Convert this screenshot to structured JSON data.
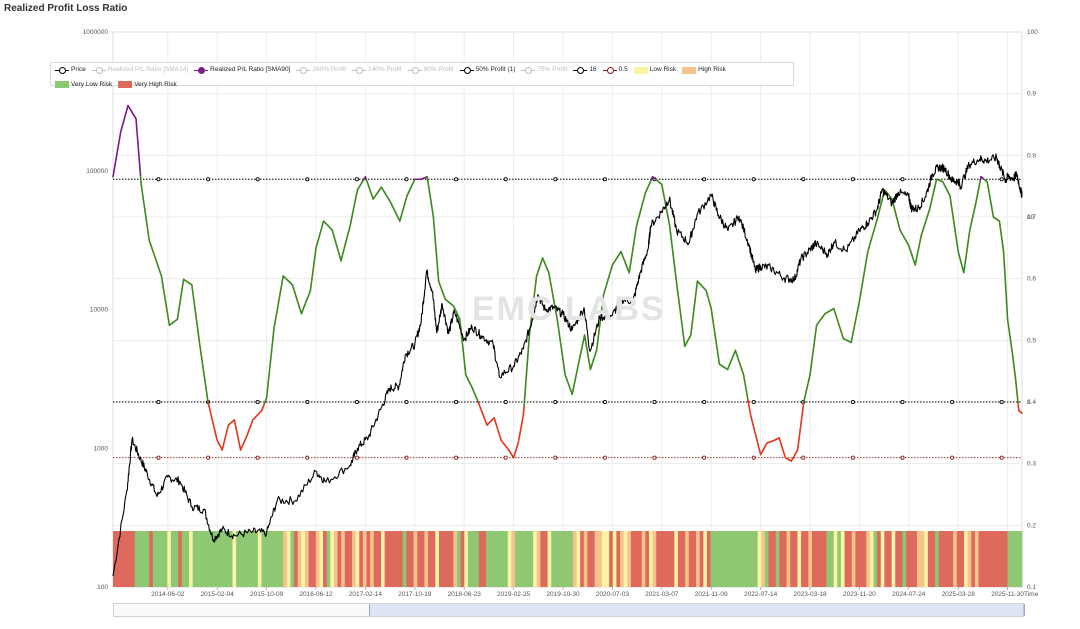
{
  "title": "Realized Profit Loss Ratio",
  "watermark": "EMC LABS",
  "legend": [
    {
      "label": "Price",
      "kind": "line",
      "color": "#000000",
      "active": true,
      "marker": "open"
    },
    {
      "label": "Realized P/L Ratio [SMA14]",
      "kind": "line",
      "color": "#bdbdbd",
      "active": false,
      "marker": "open"
    },
    {
      "label": "Realized P/L Ratio [SMA90]",
      "kind": "line",
      "color": "#7b1f86",
      "active": true,
      "marker": "fill"
    },
    {
      "label": "260% Profit",
      "kind": "line",
      "color": "#bdbdbd",
      "active": false,
      "marker": "open"
    },
    {
      "label": "140% Profit",
      "kind": "line",
      "color": "#bdbdbd",
      "active": false,
      "marker": "open"
    },
    {
      "label": "90% Profit",
      "kind": "line",
      "color": "#bdbdbd",
      "active": false,
      "marker": "open"
    },
    {
      "label": "50% Profit (1)",
      "kind": "line",
      "color": "#000000",
      "active": true,
      "marker": "open"
    },
    {
      "label": "75% Profit",
      "kind": "line",
      "color": "#bdbdbd",
      "active": false,
      "marker": "open"
    },
    {
      "label": "16",
      "kind": "line",
      "color": "#000000",
      "active": true,
      "marker": "open"
    },
    {
      "label": "0.5",
      "kind": "line",
      "color": "#8b1a1a",
      "active": true,
      "marker": "open"
    },
    {
      "label": "Low Risk",
      "kind": "box",
      "color": "#fbf3a6",
      "active": true
    },
    {
      "label": "High Risk",
      "kind": "box",
      "color": "#f6c48a",
      "active": true
    },
    {
      "label": "Very Low Risk",
      "kind": "box",
      "color": "#8fc872",
      "active": true
    },
    {
      "label": "Very High Risk",
      "kind": "box",
      "color": "#de6a5e",
      "active": true
    }
  ],
  "axes": {
    "left_ticks": [
      "1000000",
      "100000",
      "10000",
      "1000",
      "100"
    ],
    "right_outer_ticks": [
      "100",
      "0.9",
      "0.8",
      "0.7",
      "0.6",
      "0.5",
      "0.4",
      "0.3",
      "0.2",
      "0.1"
    ],
    "right_inner_ticks": [
      "10",
      "1"
    ],
    "time_label": "Time"
  },
  "chart_data": {
    "type": "line",
    "x_tick_labels": [
      "2014-06-02",
      "2015-02-04",
      "2015-10-09",
      "2016-06-12",
      "2017-02-14",
      "2017-10-19",
      "2018-06-23",
      "2019-02-25",
      "2019-10-30",
      "2020-07-03",
      "2021-03-07",
      "2021-11-09",
      "2022-07-14",
      "2023-03-18",
      "2023-11-20",
      "2024-07-24",
      "2025-03-28",
      "2025-11-30"
    ],
    "x_range": [
      "2013-09-01",
      "2026-02-10"
    ],
    "left_axis": {
      "scale": "log",
      "range": [
        100,
        1000000
      ]
    },
    "right_axis": {
      "scale": "log",
      "range": [
        0.1,
        100
      ]
    },
    "reference_lines": [
      {
        "name": "50% Profit (1)",
        "axis": "right",
        "value": 1,
        "color": "#000000"
      },
      {
        "name": "16",
        "axis": "right",
        "value": 16,
        "color": "#000000"
      },
      {
        "name": "0.5",
        "axis": "right",
        "value": 0.5,
        "color": "#8b1a1a"
      }
    ],
    "series": [
      {
        "name": "Price",
        "axis": "left",
        "color": "#000000",
        "points": [
          [
            "2013-09-01",
            120
          ],
          [
            "2013-11-10",
            500
          ],
          [
            "2013-12-05",
            1150
          ],
          [
            "2014-01-15",
            850
          ],
          [
            "2014-02-20",
            650
          ],
          [
            "2014-04-10",
            450
          ],
          [
            "2014-06-02",
            620
          ],
          [
            "2014-08-01",
            580
          ],
          [
            "2014-10-01",
            380
          ],
          [
            "2014-12-01",
            360
          ],
          [
            "2015-01-15",
            220
          ],
          [
            "2015-03-01",
            260
          ],
          [
            "2015-05-01",
            235
          ],
          [
            "2015-08-01",
            250
          ],
          [
            "2015-10-09",
            245
          ],
          [
            "2015-12-01",
            420
          ],
          [
            "2016-03-01",
            420
          ],
          [
            "2016-06-12",
            680
          ],
          [
            "2016-08-01",
            570
          ],
          [
            "2016-12-01",
            760
          ],
          [
            "2017-01-05",
            1000
          ],
          [
            "2017-03-01",
            1200
          ],
          [
            "2017-05-01",
            1900
          ],
          [
            "2017-06-15",
            2700
          ],
          [
            "2017-08-01",
            2800
          ],
          [
            "2017-09-01",
            4700
          ],
          [
            "2017-10-19",
            5600
          ],
          [
            "2017-11-20",
            8200
          ],
          [
            "2017-12-17",
            19000
          ],
          [
            "2018-01-15",
            13500
          ],
          [
            "2018-02-06",
            6800
          ],
          [
            "2018-03-05",
            11000
          ],
          [
            "2018-04-06",
            6700
          ],
          [
            "2018-05-05",
            9700
          ],
          [
            "2018-06-23",
            6100
          ],
          [
            "2018-08-01",
            7500
          ],
          [
            "2018-09-15",
            6500
          ],
          [
            "2018-11-15",
            5600
          ],
          [
            "2018-12-15",
            3300
          ],
          [
            "2019-02-25",
            3900
          ],
          [
            "2019-04-15",
            5200
          ],
          [
            "2019-05-30",
            8500
          ],
          [
            "2019-06-26",
            12800
          ],
          [
            "2019-08-01",
            10000
          ],
          [
            "2019-09-15",
            10300
          ],
          [
            "2019-10-30",
            9200
          ],
          [
            "2019-12-15",
            7100
          ],
          [
            "2020-02-12",
            10300
          ],
          [
            "2020-03-13",
            5000
          ],
          [
            "2020-05-01",
            8800
          ],
          [
            "2020-07-03",
            9100
          ],
          [
            "2020-08-15",
            11800
          ],
          [
            "2020-10-15",
            11500
          ],
          [
            "2020-11-20",
            18500
          ],
          [
            "2020-12-30",
            28000
          ],
          [
            "2021-01-10",
            40000
          ],
          [
            "2021-03-07",
            51000
          ],
          [
            "2021-04-14",
            63000
          ],
          [
            "2021-05-20",
            37000
          ],
          [
            "2021-07-20",
            30000
          ],
          [
            "2021-08-30",
            48000
          ],
          [
            "2021-11-09",
            67000
          ],
          [
            "2021-12-15",
            48000
          ],
          [
            "2022-02-01",
            37000
          ],
          [
            "2022-03-28",
            47000
          ],
          [
            "2022-05-15",
            30000
          ],
          [
            "2022-06-18",
            19000
          ],
          [
            "2022-07-14",
            20500
          ],
          [
            "2022-09-01",
            20000
          ],
          [
            "2022-11-10",
            16800
          ],
          [
            "2022-12-31",
            16500
          ],
          [
            "2023-01-31",
            23000
          ],
          [
            "2023-03-18",
            27000
          ],
          [
            "2023-04-15",
            30000
          ],
          [
            "2023-06-15",
            25000
          ],
          [
            "2023-07-15",
            30500
          ],
          [
            "2023-09-15",
            26500
          ],
          [
            "2023-11-20",
            37000
          ],
          [
            "2023-12-31",
            42000
          ],
          [
            "2024-02-15",
            52000
          ],
          [
            "2024-03-14",
            73000
          ],
          [
            "2024-05-01",
            58000
          ],
          [
            "2024-06-01",
            70000
          ],
          [
            "2024-07-24",
            65000
          ],
          [
            "2024-08-05",
            54000
          ],
          [
            "2024-09-06",
            53000
          ],
          [
            "2024-10-15",
            65000
          ],
          [
            "2024-11-20",
            95000
          ],
          [
            "2024-12-17",
            106000
          ],
          [
            "2025-01-20",
            104000
          ],
          [
            "2025-03-01",
            84000
          ],
          [
            "2025-03-28",
            84000
          ],
          [
            "2025-04-08",
            77000
          ],
          [
            "2025-05-22",
            111000
          ],
          [
            "2025-07-14",
            122000
          ],
          [
            "2025-08-15",
            118000
          ],
          [
            "2025-10-06",
            124000
          ],
          [
            "2025-10-20",
            110000
          ],
          [
            "2025-11-21",
            85000
          ],
          [
            "2025-11-30",
            91000
          ],
          [
            "2025-12-31",
            88000
          ],
          [
            "2026-01-15",
            95000
          ],
          [
            "2026-02-05",
            70000
          ],
          [
            "2026-02-10",
            68000
          ]
        ]
      },
      {
        "name": "Realized P/L Ratio [SMA90]",
        "axis": "right",
        "above_16_color": "#7b1f86",
        "mid_color": "#3d8b1f",
        "below_1_color": "#e23a1e",
        "points": [
          [
            "2013-09-01",
            16.5
          ],
          [
            "2013-10-10",
            29
          ],
          [
            "2013-11-15",
            40
          ],
          [
            "2013-12-25",
            34
          ],
          [
            "2014-01-20",
            15
          ],
          [
            "2014-03-01",
            7.5
          ],
          [
            "2014-05-01",
            4.8
          ],
          [
            "2014-06-10",
            2.6
          ],
          [
            "2014-07-20",
            2.8
          ],
          [
            "2014-08-20",
            4.6
          ],
          [
            "2014-09-30",
            4.3
          ],
          [
            "2014-11-10",
            2.0
          ],
          [
            "2014-12-20",
            1.0
          ],
          [
            "2015-02-04",
            0.62
          ],
          [
            "2015-03-01",
            0.55
          ],
          [
            "2015-04-01",
            0.75
          ],
          [
            "2015-05-01",
            0.8
          ],
          [
            "2015-06-01",
            0.55
          ],
          [
            "2015-07-01",
            0.65
          ],
          [
            "2015-08-01",
            0.8
          ],
          [
            "2015-09-15",
            0.9
          ],
          [
            "2015-10-09",
            1.05
          ],
          [
            "2015-11-15",
            2.5
          ],
          [
            "2015-12-31",
            4.8
          ],
          [
            "2016-02-15",
            4.3
          ],
          [
            "2016-03-31",
            3.0
          ],
          [
            "2016-05-15",
            4.0
          ],
          [
            "2016-06-12",
            6.8
          ],
          [
            "2016-07-20",
            9.5
          ],
          [
            "2016-09-01",
            8.5
          ],
          [
            "2016-10-15",
            5.8
          ],
          [
            "2016-11-30",
            9.0
          ],
          [
            "2017-01-05",
            14.0
          ],
          [
            "2017-02-14",
            16.5
          ],
          [
            "2017-03-25",
            12.5
          ],
          [
            "2017-05-05",
            14.5
          ],
          [
            "2017-06-20",
            12.0
          ],
          [
            "2017-08-05",
            9.5
          ],
          [
            "2017-09-10",
            13.0
          ],
          [
            "2017-10-19",
            16.0
          ],
          [
            "2017-11-20",
            16.0
          ],
          [
            "2017-12-20",
            16.5
          ],
          [
            "2018-01-20",
            10.0
          ],
          [
            "2018-02-15",
            4.5
          ],
          [
            "2018-03-20",
            3.6
          ],
          [
            "2018-05-01",
            3.3
          ],
          [
            "2018-06-01",
            2.8
          ],
          [
            "2018-07-01",
            1.4
          ],
          [
            "2018-08-01",
            1.2
          ],
          [
            "2018-09-01",
            1.0
          ],
          [
            "2018-10-15",
            0.75
          ],
          [
            "2018-11-20",
            0.82
          ],
          [
            "2018-12-25",
            0.62
          ],
          [
            "2019-02-01",
            0.55
          ],
          [
            "2019-02-25",
            0.5
          ],
          [
            "2019-03-20",
            0.6
          ],
          [
            "2019-04-15",
            0.85
          ],
          [
            "2019-05-15",
            2.3
          ],
          [
            "2019-06-20",
            4.8
          ],
          [
            "2019-07-20",
            6.0
          ],
          [
            "2019-08-20",
            5.0
          ],
          [
            "2019-10-01",
            2.8
          ],
          [
            "2019-11-10",
            1.4
          ],
          [
            "2019-12-15",
            1.1
          ],
          [
            "2020-01-15",
            1.6
          ],
          [
            "2020-02-15",
            2.3
          ],
          [
            "2020-03-15",
            1.5
          ],
          [
            "2020-04-15",
            1.9
          ],
          [
            "2020-05-20",
            3.8
          ],
          [
            "2020-07-03",
            5.5
          ],
          [
            "2020-08-15",
            6.5
          ],
          [
            "2020-09-25",
            5.0
          ],
          [
            "2020-11-01",
            9.0
          ],
          [
            "2020-12-15",
            13.5
          ],
          [
            "2021-01-20",
            16.5
          ],
          [
            "2021-03-07",
            15.0
          ],
          [
            "2021-04-15",
            9.0
          ],
          [
            "2021-05-20",
            4.4
          ],
          [
            "2021-06-30",
            2.0
          ],
          [
            "2021-07-30",
            2.3
          ],
          [
            "2021-09-01",
            4.5
          ],
          [
            "2021-10-15",
            4.0
          ],
          [
            "2021-11-09",
            3.2
          ],
          [
            "2021-12-20",
            1.6
          ],
          [
            "2022-01-30",
            1.5
          ],
          [
            "2022-03-10",
            1.9
          ],
          [
            "2022-04-20",
            1.4
          ],
          [
            "2022-05-25",
            0.85
          ],
          [
            "2022-07-14",
            0.52
          ],
          [
            "2022-08-15",
            0.6
          ],
          [
            "2022-09-20",
            0.62
          ],
          [
            "2022-10-15",
            0.64
          ],
          [
            "2022-11-15",
            0.5
          ],
          [
            "2022-12-15",
            0.48
          ],
          [
            "2023-01-15",
            0.55
          ],
          [
            "2023-02-15",
            1.0
          ],
          [
            "2023-03-18",
            1.4
          ],
          [
            "2023-04-20",
            2.6
          ],
          [
            "2023-06-01",
            3.0
          ],
          [
            "2023-07-15",
            3.2
          ],
          [
            "2023-09-01",
            2.2
          ],
          [
            "2023-10-10",
            2.1
          ],
          [
            "2023-11-20",
            3.5
          ],
          [
            "2024-01-01",
            6.5
          ],
          [
            "2024-02-20",
            10.0
          ],
          [
            "2024-03-25",
            14.0
          ],
          [
            "2024-05-01",
            12.5
          ],
          [
            "2024-06-10",
            8.5
          ],
          [
            "2024-07-24",
            7.0
          ],
          [
            "2024-08-25",
            5.5
          ],
          [
            "2024-09-25",
            8.0
          ],
          [
            "2024-11-05",
            11.0
          ],
          [
            "2024-12-10",
            16.0
          ],
          [
            "2025-01-10",
            15.5
          ],
          [
            "2025-02-15",
            13.0
          ],
          [
            "2025-03-28",
            6.5
          ],
          [
            "2025-04-25",
            5.0
          ],
          [
            "2025-05-25",
            8.5
          ],
          [
            "2025-06-25",
            12.0
          ],
          [
            "2025-07-20",
            16.5
          ],
          [
            "2025-08-20",
            15.5
          ],
          [
            "2025-09-20",
            10.0
          ],
          [
            "2025-10-20",
            9.5
          ],
          [
            "2025-11-10",
            6.5
          ],
          [
            "2025-11-30",
            2.8
          ],
          [
            "2025-12-25",
            1.8
          ],
          [
            "2026-01-10",
            1.3
          ],
          [
            "2026-01-25",
            0.9
          ],
          [
            "2026-02-10",
            0.87
          ]
        ]
      }
    ],
    "risk_bands": {
      "start": "2013-09-01",
      "end": "2026-02-10",
      "colors": {
        "L": "#fbf3a6",
        "H": "#f6c48a",
        "G": "#8fc872",
        "R": "#de6a5e"
      },
      "sequence": "RRRRRRGGGGRGGGGYGGRGGYGGGGGGGGGGGYGGGGGGYGGGGGGHYGRHYHRRHYRGYHRHRRHYRHRHRRYRRRRRGRRHRRHRRYRRRRHGRYGGGRRGGGGGGYHGGGGGYHRRYGGGGGGHYRHRRHHYYRYRHYHRRRHRYHRRRRRYRRHRRHRYRGGGGGGGGGGGGGYHGRRGRRHRRYRRHRRRRGGYGYRRHRRRHYGRYRRYRRGRRRHHYRRGRRRRHRRYHRHRRRRRRRRGGGG"
    }
  }
}
